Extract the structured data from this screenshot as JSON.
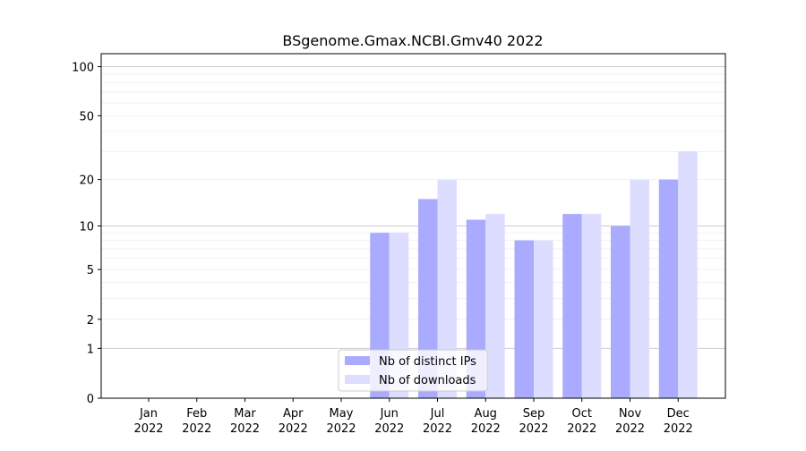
{
  "chart_data": {
    "type": "bar",
    "title": "BSgenome.Gmax.NCBI.Gmv40 2022",
    "xlabel": "",
    "ylabel": "",
    "yscale": "log1p",
    "y_ticks": [
      0,
      1,
      2,
      5,
      10,
      20,
      50,
      100
    ],
    "ylim": [
      0,
      120
    ],
    "grid": "horizontal",
    "legend_position": "lower-center",
    "categories": [
      {
        "month": "Jan",
        "year": "2022"
      },
      {
        "month": "Feb",
        "year": "2022"
      },
      {
        "month": "Mar",
        "year": "2022"
      },
      {
        "month": "Apr",
        "year": "2022"
      },
      {
        "month": "May",
        "year": "2022"
      },
      {
        "month": "Jun",
        "year": "2022"
      },
      {
        "month": "Jul",
        "year": "2022"
      },
      {
        "month": "Aug",
        "year": "2022"
      },
      {
        "month": "Sep",
        "year": "2022"
      },
      {
        "month": "Oct",
        "year": "2022"
      },
      {
        "month": "Nov",
        "year": "2022"
      },
      {
        "month": "Dec",
        "year": "2022"
      }
    ],
    "series": [
      {
        "name": "Nb of distinct IPs",
        "color": "#aaaaff",
        "values": [
          0,
          0,
          0,
          0,
          0,
          9,
          15,
          11,
          8,
          12,
          10,
          20
        ]
      },
      {
        "name": "Nb of downloads",
        "color": "#ddddff",
        "values": [
          0,
          0,
          0,
          0,
          0,
          9,
          20,
          12,
          8,
          12,
          20,
          30
        ]
      }
    ]
  }
}
